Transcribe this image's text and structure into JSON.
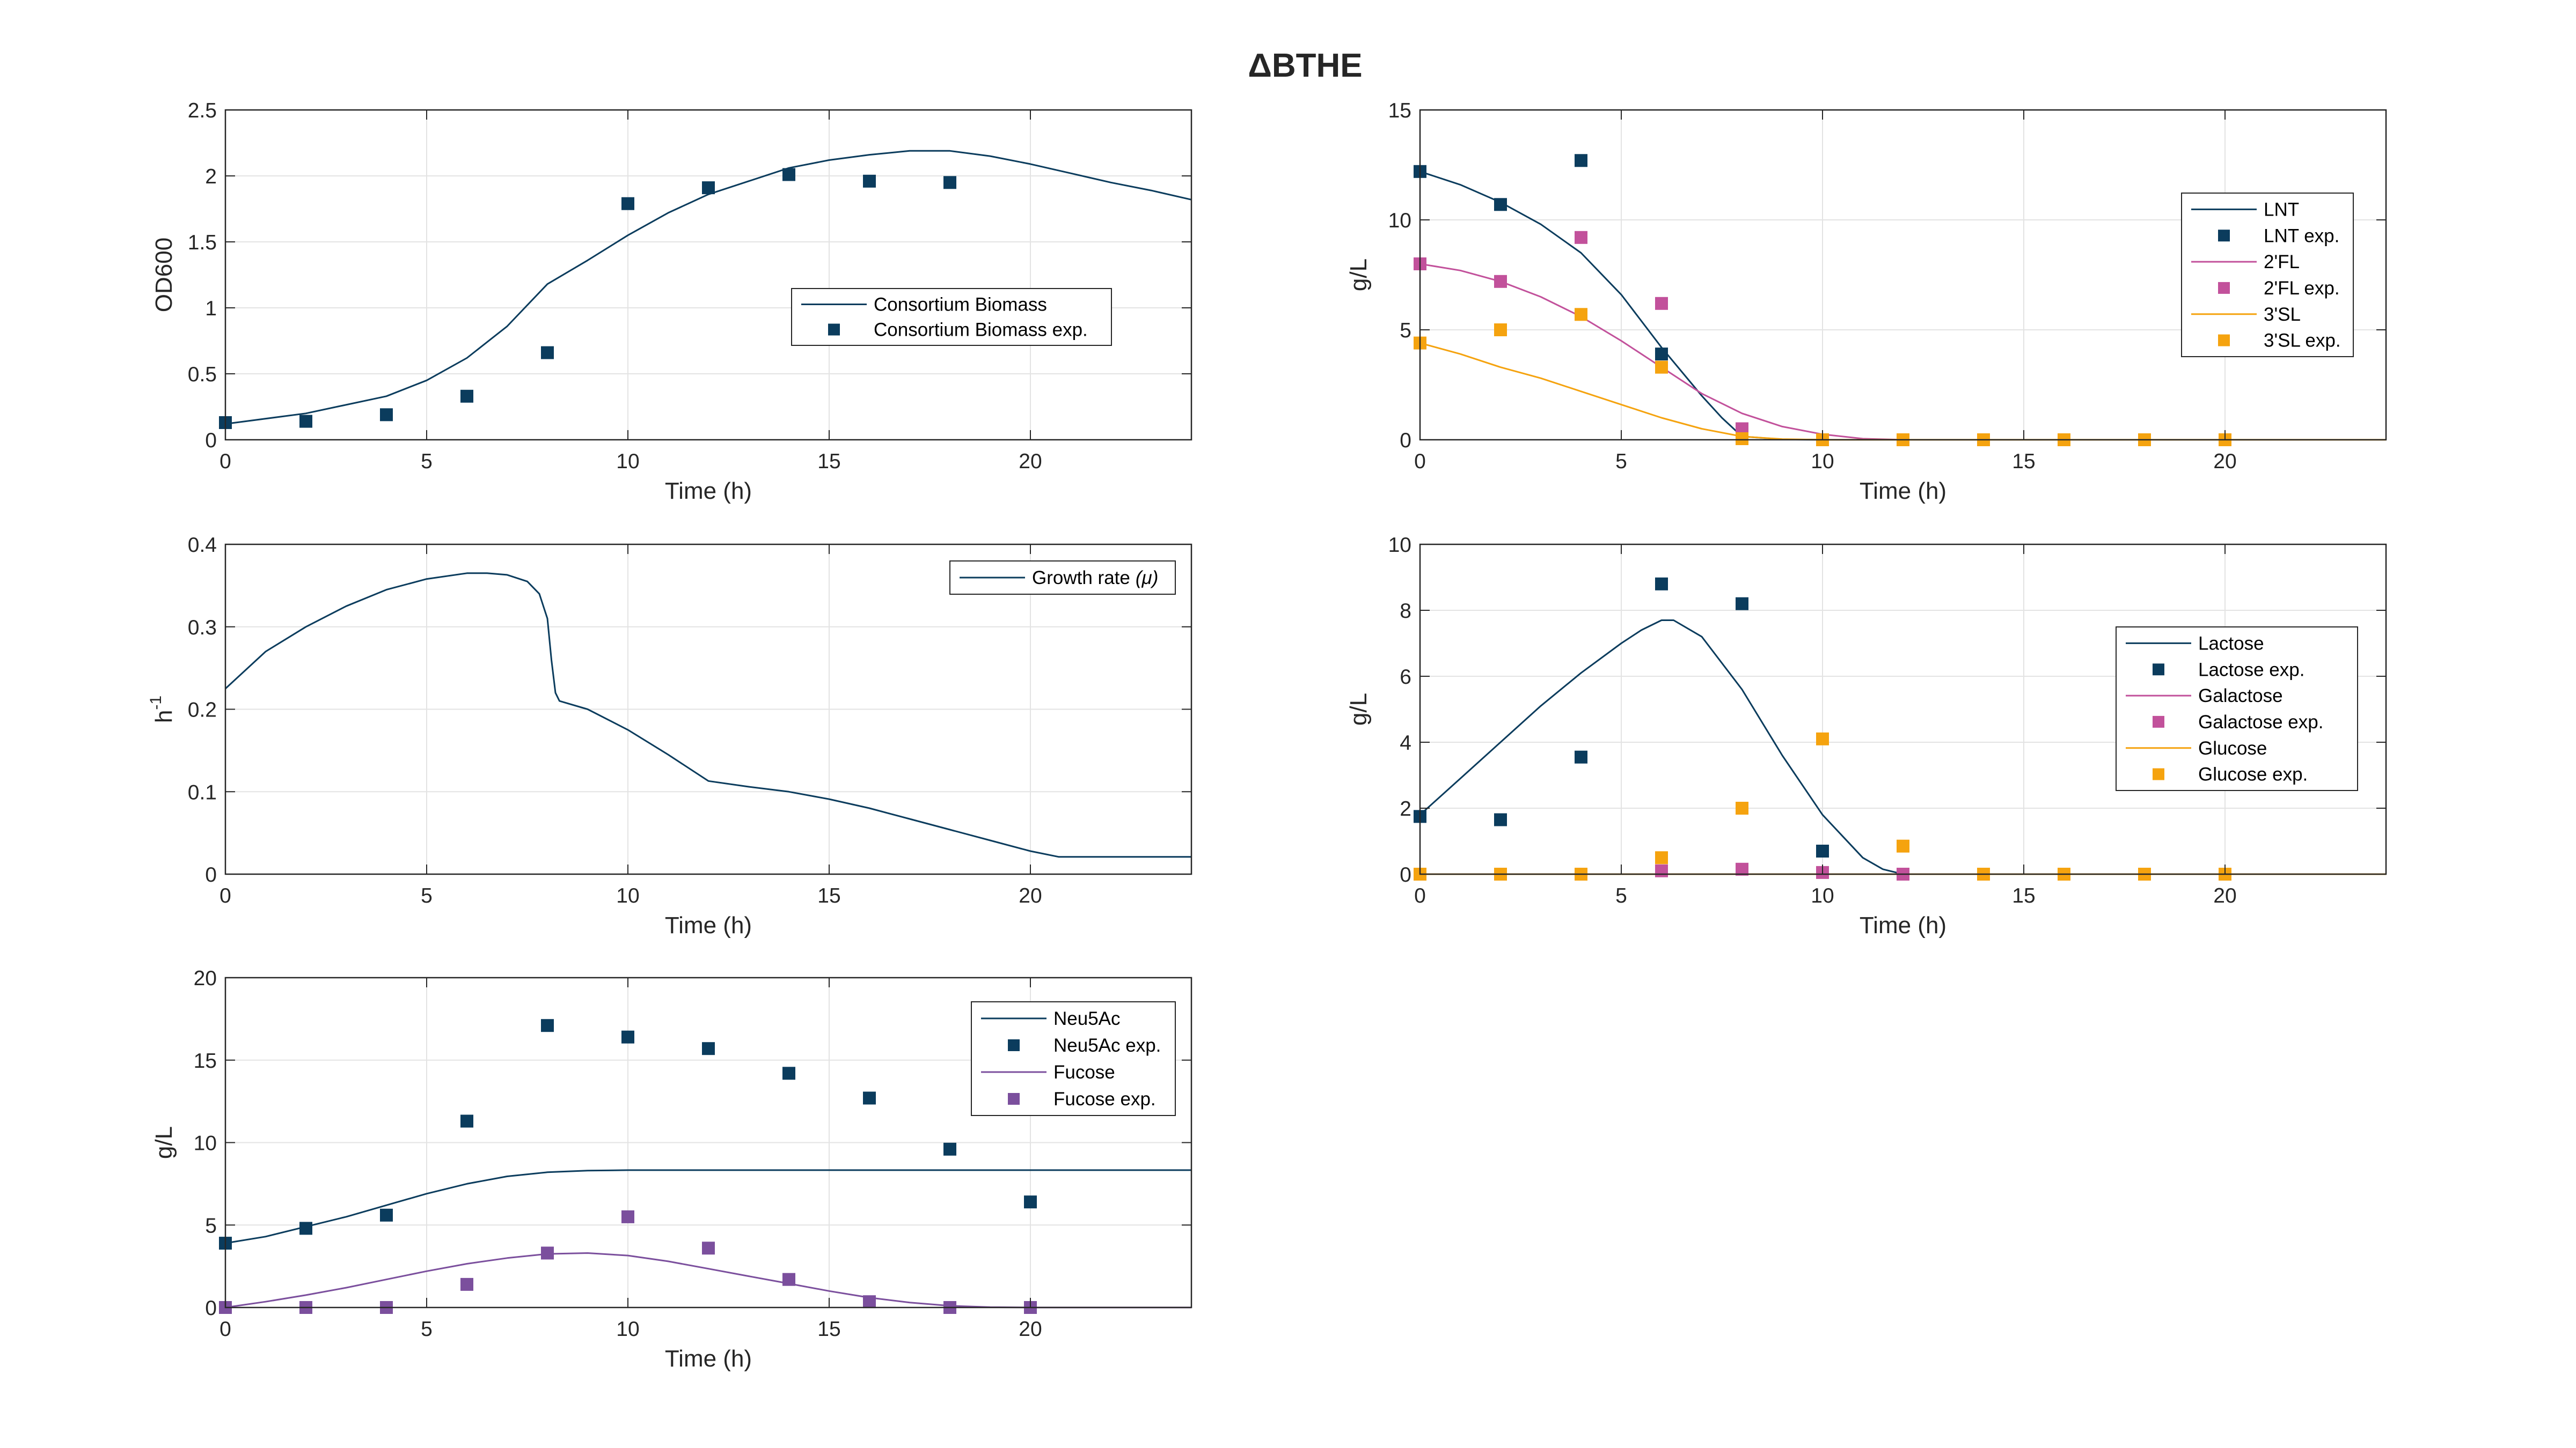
{
  "figure": {
    "title": "ΔBTHE"
  },
  "colors": {
    "navy": "#0b3c5d",
    "magenta": "#c2519b",
    "orange": "#f5a30f",
    "purple": "#7b4f9d"
  },
  "chart_data": [
    {
      "id": "p1",
      "type": "line",
      "xlabel": "Time (h)",
      "ylabel": "OD600",
      "xlim": [
        0,
        24
      ],
      "ylim": [
        0,
        2.5
      ],
      "xticks": [
        0,
        5,
        10,
        15,
        20
      ],
      "xtick_labels": [
        "0",
        "5",
        "10",
        "15",
        "20"
      ],
      "yticks": [
        0,
        0.5,
        1,
        1.5,
        2,
        2.5
      ],
      "ytick_labels": [
        "0",
        "0.5",
        "1",
        "1.5",
        "2",
        "2.5"
      ],
      "grid": true,
      "legend_position": "middle-right",
      "series": [
        {
          "name": "Consortium Biomass",
          "kind": "line",
          "color": "#0b3c5d",
          "x": [
            0,
            2,
            4,
            5,
            6,
            7,
            8,
            9,
            10,
            11,
            12,
            13,
            14,
            15,
            16,
            17,
            17.5,
            18,
            19,
            20,
            21,
            22,
            23,
            24
          ],
          "y": [
            0.12,
            0.2,
            0.33,
            0.45,
            0.62,
            0.86,
            1.18,
            1.36,
            1.55,
            1.72,
            1.86,
            1.96,
            2.06,
            2.12,
            2.16,
            2.19,
            2.19,
            2.19,
            2.15,
            2.09,
            2.02,
            1.95,
            1.89,
            1.82
          ]
        },
        {
          "name": "Consortium Biomass exp.",
          "kind": "marker",
          "color": "#0b3c5d",
          "x": [
            0,
            2,
            4,
            6,
            8,
            10,
            12,
            14,
            16,
            18
          ],
          "y": [
            0.13,
            0.14,
            0.19,
            0.33,
            0.66,
            1.79,
            1.91,
            2.01,
            1.96,
            1.95
          ]
        }
      ]
    },
    {
      "id": "p2",
      "type": "line",
      "xlabel": "Time (h)",
      "ylabel": "g/L",
      "xlim": [
        0,
        24
      ],
      "ylim": [
        0,
        15
      ],
      "xticks": [
        0,
        5,
        10,
        15,
        20
      ],
      "xtick_labels": [
        "0",
        "5",
        "10",
        "15",
        "20"
      ],
      "yticks": [
        0,
        5,
        10,
        15
      ],
      "ytick_labels": [
        "0",
        "5",
        "10",
        "15"
      ],
      "grid": true,
      "legend_position": "upper-right",
      "series": [
        {
          "name": "LNT",
          "kind": "line",
          "color": "#0b3c5d",
          "x": [
            0,
            1,
            2,
            3,
            4,
            5,
            6,
            7,
            7.5,
            8,
            9,
            10,
            24
          ],
          "y": [
            12.2,
            11.6,
            10.8,
            9.8,
            8.5,
            6.6,
            4.2,
            2.0,
            1.0,
            0.15,
            0.02,
            0,
            0
          ]
        },
        {
          "name": "LNT exp.",
          "kind": "marker",
          "color": "#0b3c5d",
          "x": [
            0,
            2,
            4,
            6
          ],
          "y": [
            12.2,
            10.7,
            12.7,
            3.9
          ]
        },
        {
          "name": "2'FL",
          "kind": "line",
          "color": "#c2519b",
          "x": [
            0,
            1,
            2,
            3,
            4,
            5,
            6,
            7,
            8,
            9,
            10,
            11,
            12,
            24
          ],
          "y": [
            8.0,
            7.7,
            7.2,
            6.5,
            5.6,
            4.5,
            3.3,
            2.1,
            1.2,
            0.6,
            0.25,
            0.05,
            0,
            0
          ]
        },
        {
          "name": "2'FL exp.",
          "kind": "marker",
          "color": "#c2519b",
          "x": [
            0,
            2,
            4,
            6,
            8
          ],
          "y": [
            8.0,
            7.2,
            9.2,
            6.2,
            0.5
          ]
        },
        {
          "name": "3'SL",
          "kind": "line",
          "color": "#f5a30f",
          "x": [
            0,
            1,
            2,
            3,
            4,
            5,
            6,
            7,
            8,
            9,
            10,
            24
          ],
          "y": [
            4.4,
            3.9,
            3.3,
            2.8,
            2.2,
            1.6,
            1.0,
            0.5,
            0.15,
            0.03,
            0,
            0
          ]
        },
        {
          "name": "3'SL exp.",
          "kind": "marker",
          "color": "#f5a30f",
          "x": [
            0,
            2,
            4,
            6,
            8,
            10,
            12,
            14,
            16,
            18,
            20
          ],
          "y": [
            4.4,
            5.0,
            5.7,
            3.3,
            0.05,
            0,
            0,
            0,
            0,
            0,
            0
          ]
        }
      ]
    },
    {
      "id": "p3",
      "type": "line",
      "xlabel": "Time (h)",
      "ylabel": "h",
      "ylabel_superscript": "-1",
      "xlim": [
        0,
        24
      ],
      "ylim": [
        0,
        0.4
      ],
      "xticks": [
        0,
        5,
        10,
        15,
        20
      ],
      "xtick_labels": [
        "0",
        "5",
        "10",
        "15",
        "20"
      ],
      "yticks": [
        0,
        0.1,
        0.2,
        0.3,
        0.4
      ],
      "ytick_labels": [
        "0",
        "0.1",
        "0.2",
        "0.3",
        "0.4"
      ],
      "grid": true,
      "legend_position": "top-right",
      "series": [
        {
          "name": "Growth rate",
          "name_suffix": "(μ)",
          "kind": "line",
          "color": "#0b3c5d",
          "x": [
            0,
            1,
            2,
            3,
            4,
            5,
            6,
            6.5,
            7,
            7.5,
            7.8,
            8.0,
            8.1,
            8.2,
            8.3,
            9,
            10,
            11,
            12,
            13,
            14,
            15,
            16,
            17,
            18,
            19,
            20,
            20.7,
            24
          ],
          "y": [
            0.225,
            0.27,
            0.3,
            0.325,
            0.345,
            0.358,
            0.365,
            0.365,
            0.363,
            0.355,
            0.34,
            0.31,
            0.26,
            0.22,
            0.21,
            0.2,
            0.175,
            0.145,
            0.113,
            0.106,
            0.1,
            0.091,
            0.08,
            0.067,
            0.054,
            0.041,
            0.028,
            0.021,
            0.021
          ]
        }
      ]
    },
    {
      "id": "p4",
      "type": "line",
      "xlabel": "Time (h)",
      "ylabel": "g/L",
      "xlim": [
        0,
        24
      ],
      "ylim": [
        0,
        10
      ],
      "xticks": [
        0,
        5,
        10,
        15,
        20
      ],
      "xtick_labels": [
        "0",
        "5",
        "10",
        "15",
        "20"
      ],
      "yticks": [
        0,
        2,
        4,
        6,
        8,
        10
      ],
      "ytick_labels": [
        "0",
        "2",
        "4",
        "6",
        "8",
        "10"
      ],
      "grid": true,
      "legend_position": "middle-right",
      "series": [
        {
          "name": "Lactose",
          "kind": "line",
          "color": "#0b3c5d",
          "x": [
            0,
            1,
            2,
            3,
            4,
            5,
            5.5,
            6,
            6.3,
            7,
            8,
            9,
            10,
            11,
            11.5,
            12,
            24
          ],
          "y": [
            1.8,
            2.9,
            4.0,
            5.1,
            6.1,
            7.0,
            7.4,
            7.7,
            7.7,
            7.2,
            5.6,
            3.6,
            1.8,
            0.5,
            0.15,
            0,
            0
          ]
        },
        {
          "name": "Lactose exp.",
          "kind": "marker",
          "color": "#0b3c5d",
          "x": [
            0,
            2,
            4,
            6,
            8,
            10,
            12
          ],
          "y": [
            1.75,
            1.65,
            3.55,
            8.8,
            8.2,
            0.7,
            0
          ]
        },
        {
          "name": "Galactose",
          "kind": "line",
          "color": "#c2519b",
          "x": [
            0,
            24
          ],
          "y": [
            0,
            0
          ]
        },
        {
          "name": "Galactose exp.",
          "kind": "marker",
          "color": "#c2519b",
          "x": [
            6,
            8,
            10,
            12
          ],
          "y": [
            0.1,
            0.15,
            0.05,
            0
          ]
        },
        {
          "name": "Glucose",
          "kind": "line",
          "color": "#f5a30f",
          "x": [
            0,
            24
          ],
          "y": [
            0,
            0
          ]
        },
        {
          "name": "Glucose exp.",
          "kind": "marker",
          "color": "#f5a30f",
          "x": [
            0,
            2,
            4,
            6,
            8,
            10,
            12,
            14,
            16,
            18,
            20
          ],
          "y": [
            0,
            0,
            0,
            0.5,
            2.0,
            4.1,
            0.85,
            0,
            0,
            0,
            0
          ]
        }
      ]
    },
    {
      "id": "p5",
      "type": "line",
      "xlabel": "Time (h)",
      "ylabel": "g/L",
      "xlim": [
        0,
        24
      ],
      "ylim": [
        0,
        20
      ],
      "xticks": [
        0,
        5,
        10,
        15,
        20
      ],
      "xtick_labels": [
        "0",
        "5",
        "10",
        "15",
        "20"
      ],
      "yticks": [
        0,
        5,
        10,
        15,
        20
      ],
      "ytick_labels": [
        "0",
        "5",
        "10",
        "15",
        "20"
      ],
      "grid": true,
      "legend_position": "upper-right",
      "series": [
        {
          "name": "Neu5Ac",
          "kind": "line",
          "color": "#0b3c5d",
          "x": [
            0,
            1,
            2,
            3,
            4,
            5,
            6,
            7,
            8,
            9,
            10,
            11,
            12,
            24
          ],
          "y": [
            3.9,
            4.3,
            4.9,
            5.5,
            6.2,
            6.9,
            7.5,
            7.95,
            8.2,
            8.3,
            8.33,
            8.33,
            8.33,
            8.33
          ]
        },
        {
          "name": "Neu5Ac exp.",
          "kind": "marker",
          "color": "#0b3c5d",
          "x": [
            0,
            2,
            4,
            6,
            8,
            10,
            12,
            14,
            16,
            18,
            20
          ],
          "y": [
            3.9,
            4.8,
            5.6,
            11.3,
            17.1,
            16.4,
            15.7,
            14.2,
            12.7,
            9.6,
            6.4
          ]
        },
        {
          "name": "Fucose",
          "kind": "line",
          "color": "#7b4f9d",
          "x": [
            0,
            1,
            2,
            3,
            4,
            5,
            6,
            7,
            8,
            9,
            10,
            11,
            12,
            13,
            14,
            15,
            16,
            17,
            18,
            19,
            20,
            24
          ],
          "y": [
            0,
            0.35,
            0.75,
            1.2,
            1.7,
            2.2,
            2.65,
            3.0,
            3.25,
            3.3,
            3.15,
            2.8,
            2.35,
            1.9,
            1.45,
            1.0,
            0.6,
            0.3,
            0.1,
            0.02,
            0,
            0
          ]
        },
        {
          "name": "Fucose exp.",
          "kind": "marker",
          "color": "#7b4f9d",
          "x": [
            0,
            2,
            4,
            6,
            8,
            10,
            12,
            14,
            16,
            18,
            20
          ],
          "y": [
            0,
            0,
            0,
            1.4,
            3.3,
            5.5,
            3.6,
            1.7,
            0.35,
            0,
            0
          ]
        }
      ]
    }
  ]
}
